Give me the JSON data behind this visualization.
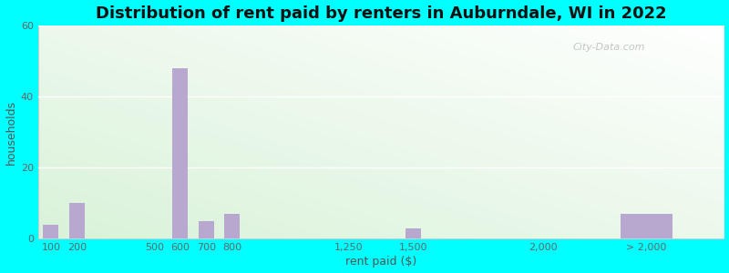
{
  "title": "Distribution of rent paid by renters in Auburndale, WI in 2022",
  "xlabel": "rent paid ($)",
  "ylabel": "households",
  "bar_color": "#b8a8d0",
  "background_outer": "#00ffff",
  "ylim": [
    0,
    60
  ],
  "yticks": [
    0,
    20,
    40,
    60
  ],
  "categories": [
    "100",
    "200",
    "500",
    "600",
    "700",
    "800",
    "1,250",
    "1,500",
    "2,000",
    "> 2,000"
  ],
  "x_positions": [
    100,
    200,
    500,
    600,
    700,
    800,
    1250,
    1500,
    2000,
    2400
  ],
  "values": [
    4,
    10,
    0,
    48,
    5,
    7,
    0,
    3,
    0,
    7
  ],
  "bar_width": [
    60,
    60,
    60,
    60,
    60,
    60,
    60,
    60,
    60,
    200
  ],
  "xlim": [
    50,
    2700
  ],
  "xtick_positions": [
    100,
    200,
    500,
    600,
    700,
    800,
    1250,
    1500,
    2000,
    2400
  ],
  "xtick_labels": [
    "100",
    "200",
    "500",
    "600",
    "700",
    "800",
    "1,250",
    "1,500",
    "2,000",
    "> 2,000"
  ],
  "title_fontsize": 13,
  "axis_label_fontsize": 9,
  "tick_fontsize": 8,
  "watermark_text": "City-Data.com"
}
